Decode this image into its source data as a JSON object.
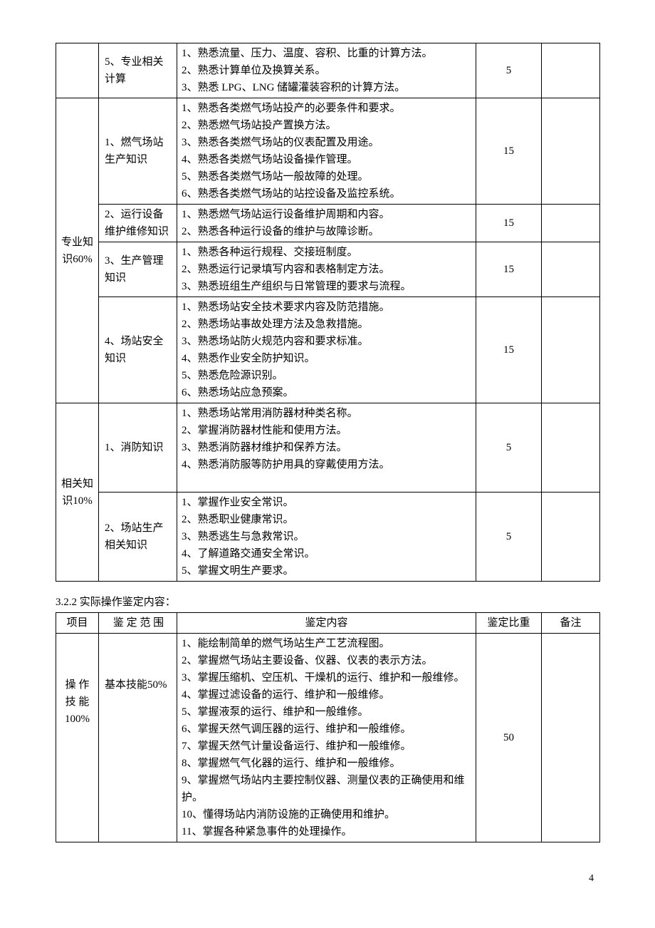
{
  "table1": {
    "groups": [
      {
        "category": "",
        "rows": [
          {
            "scope": "5、专业相关计算",
            "content": "1、熟悉流量、压力、温度、容积、比重的计算方法。\n2、熟悉计算单位及换算关系。\n3、熟悉 LPG、LNG 储罐灌装容积的计算方法。",
            "weight": "5",
            "note": ""
          }
        ]
      },
      {
        "category": "专业知识60%",
        "rows": [
          {
            "scope": "1、燃气场站生产知识",
            "content": "1、熟悉各类燃气场站投产的必要条件和要求。\n2、熟悉燃气场站投产置换方法。\n3、熟悉各类燃气场站的仪表配置及用途。\n4、熟悉各类燃气场站设备操作管理。\n5、熟悉各类燃气场站一般故障的处理。\n6、熟悉各类燃气场站的站控设备及监控系统。",
            "weight": "15",
            "note": ""
          },
          {
            "scope": "2、运行设备维护维修知识",
            "content": "1、熟悉燃气场站运行设备维护周期和内容。\n2、熟悉各种运行设备的维护与故障诊断。",
            "weight": "15",
            "note": ""
          },
          {
            "scope": "3、生产管理知识",
            "content": "1、熟悉各种运行规程、交接班制度。\n2、熟悉运行记录填写内容和表格制定方法。\n3、熟悉班组生产组织与日常管理的要求与流程。",
            "weight": "15",
            "note": ""
          },
          {
            "scope": "4、场站安全知识",
            "content": "1、熟悉场站安全技术要求内容及防范措施。\n2、熟悉场站事故处理方法及急救措施。\n3、熟悉场站防火规范内容和要求标准。\n4、熟悉作业安全防护知识。\n5、熟悉危险源识别。\n6、熟悉场站应急预案。",
            "weight": "15",
            "note": ""
          }
        ]
      },
      {
        "category": "相关知识10%",
        "rows": [
          {
            "scope": "1、消防知识",
            "content": "1、熟悉场站常用消防器材种类名称。\n2、掌握消防器材性能和使用方法。\n3、熟悉消防器材维护和保养方法。\n4、熟悉消防服等防护用具的穿戴使用方法。",
            "weight": "5",
            "note": "",
            "extraHeight": true
          },
          {
            "scope": "2、场站生产相关知识",
            "content": "1、掌握作业安全常识。\n2、熟悉职业健康常识。\n3、熟悉逃生与急救常识。\n4、了解道路交通安全常识。\n5、掌握文明生产要求。",
            "weight": "5",
            "note": ""
          }
        ]
      }
    ]
  },
  "section2": {
    "title": "3.2.2 实际操作鉴定内容：",
    "header": {
      "col1": "项目",
      "col2": "鉴 定 范 围",
      "col3": "鉴定内容",
      "col4": "鉴定比重",
      "col5": "备注"
    },
    "rows": [
      {
        "category": "操 作技 能100%",
        "scope": "基本技能50%",
        "content": "1、能绘制简单的燃气场站生产工艺流程图。\n2、掌握燃气场站主要设备、仪器、仪表的表示方法。\n3、掌握压缩机、空压机、干燥机的运行、维护和一般维修。\n4、掌握过滤设备的运行、维护和一般维修。\n5、掌握液泵的运行、维护和一般维修。\n6、掌握天然气调压器的运行、维护和一般维修。\n7、掌握天然气计量设备运行、维护和一般维修。\n8、掌握燃气气化器的运行、维护和一般维修。\n9、掌握燃气场站内主要控制仪器、测量仪表的正确使用和维护。\n10、懂得场站内消防设施的正确使用和维护。\n11、掌握各种紧急事件的处理操作。",
        "weight": "50",
        "note": ""
      }
    ]
  },
  "pageNum": "4"
}
